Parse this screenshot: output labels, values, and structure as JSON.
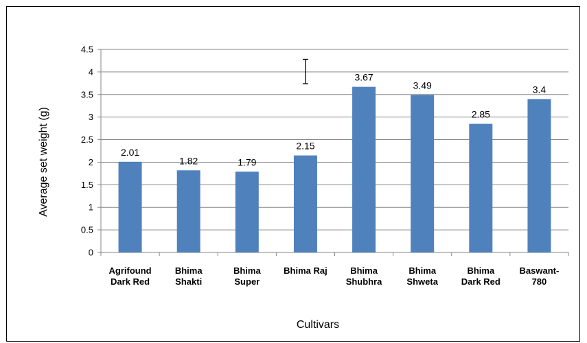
{
  "chart_data": {
    "type": "bar",
    "categories": [
      [
        "Agrifound",
        "Dark Red"
      ],
      [
        "Bhima",
        "Shakti"
      ],
      [
        "Bhima",
        "Super"
      ],
      [
        "Bhima Raj"
      ],
      [
        "Bhima",
        "Shubhra"
      ],
      [
        "Bhima",
        "Shweta"
      ],
      [
        "Bhima",
        "Dark Red"
      ],
      [
        "Baswant-",
        "780"
      ]
    ],
    "values": [
      2.01,
      1.82,
      1.79,
      2.15,
      3.67,
      3.49,
      2.85,
      3.4
    ],
    "data_labels": [
      "2.01",
      "1.82",
      "1.79",
      "2.15",
      "3.67",
      "3.49",
      "2.85",
      "3.4"
    ],
    "title": "",
    "xlabel": "Cultivars",
    "ylabel": "Average set  weight (g)",
    "ylim": [
      0,
      4.5
    ],
    "yticks": [
      "0",
      "0.5",
      "1",
      "1.5",
      "2",
      "2.5",
      "3",
      "3.5",
      "4",
      "4.5"
    ],
    "error_bar_range": [
      3.74,
      4.28
    ],
    "grid": "horizontal",
    "legend": "none",
    "bar_color": "#4f81bd",
    "grid_color": "#868686"
  }
}
